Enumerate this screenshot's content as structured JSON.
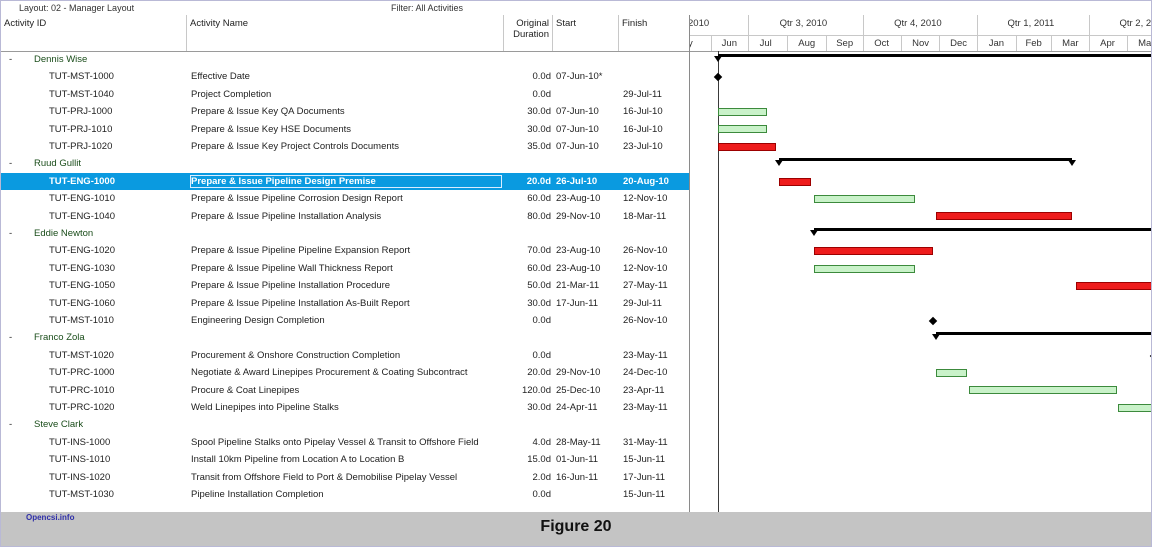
{
  "topbar": {
    "layout": "Layout: 02 - Manager Layout",
    "filter": "Filter: All Activities"
  },
  "columns": {
    "id": "Activity ID",
    "name": "Activity Name",
    "dur1": "Original",
    "dur2": "Duration",
    "start": "Start",
    "finish": "Finish"
  },
  "timescale": {
    "quarters": [
      "2010",
      "Qtr 3, 2010",
      "Qtr 4, 2010",
      "Qtr 1, 2011",
      "Qtr 2, 2"
    ],
    "months": [
      "y",
      "Jun",
      "Jul",
      "Aug",
      "Sep",
      "Oct",
      "Nov",
      "Dec",
      "Jan",
      "Feb",
      "Mar",
      "Apr",
      "May"
    ]
  },
  "rows": [
    {
      "type": "group",
      "name": "Dennis Wise",
      "collapse": "-"
    },
    {
      "id": "TUT-MST-1000",
      "name": "Effective Date",
      "dur": "0.0d",
      "start": "07-Jun-10*",
      "finish": ""
    },
    {
      "id": "TUT-MST-1040",
      "name": "Project Completion",
      "dur": "0.0d",
      "start": "",
      "finish": "29-Jul-11"
    },
    {
      "id": "TUT-PRJ-1000",
      "name": "Prepare & Issue Key QA Documents",
      "dur": "30.0d",
      "start": "07-Jun-10",
      "finish": "16-Jul-10"
    },
    {
      "id": "TUT-PRJ-1010",
      "name": "Prepare & Issue Key HSE Documents",
      "dur": "30.0d",
      "start": "07-Jun-10",
      "finish": "16-Jul-10"
    },
    {
      "id": "TUT-PRJ-1020",
      "name": "Prepare & Issue Key Project Controls Documents",
      "dur": "35.0d",
      "start": "07-Jun-10",
      "finish": "23-Jul-10"
    },
    {
      "type": "group",
      "name": "Ruud Gullit",
      "collapse": "-"
    },
    {
      "id": "TUT-ENG-1000",
      "name": "Prepare & Issue Pipeline Design Premise",
      "dur": "20.0d",
      "start": "26-Jul-10",
      "finish": "20-Aug-10",
      "selected": true
    },
    {
      "id": "TUT-ENG-1010",
      "name": "Prepare & Issue Pipeline Corrosion Design Report",
      "dur": "60.0d",
      "start": "23-Aug-10",
      "finish": "12-Nov-10"
    },
    {
      "id": "TUT-ENG-1040",
      "name": "Prepare & Issue Pipeline Installation Analysis",
      "dur": "80.0d",
      "start": "29-Nov-10",
      "finish": "18-Mar-11"
    },
    {
      "type": "group",
      "name": "Eddie Newton",
      "collapse": "-"
    },
    {
      "id": "TUT-ENG-1020",
      "name": "Prepare & Issue Pipeline Pipeline Expansion Report",
      "dur": "70.0d",
      "start": "23-Aug-10",
      "finish": "26-Nov-10"
    },
    {
      "id": "TUT-ENG-1030",
      "name": "Prepare & Issue Pipeline Wall Thickness Report",
      "dur": "60.0d",
      "start": "23-Aug-10",
      "finish": "12-Nov-10"
    },
    {
      "id": "TUT-ENG-1050",
      "name": "Prepare & Issue Pipeline Installation Procedure",
      "dur": "50.0d",
      "start": "21-Mar-11",
      "finish": "27-May-11"
    },
    {
      "id": "TUT-ENG-1060",
      "name": "Prepare & Issue Pipeline Installation As-Built Report",
      "dur": "30.0d",
      "start": "17-Jun-11",
      "finish": "29-Jul-11"
    },
    {
      "id": "TUT-MST-1010",
      "name": "Engineering Design Completion",
      "dur": "0.0d",
      "start": "",
      "finish": "26-Nov-10"
    },
    {
      "type": "group",
      "name": "Franco Zola",
      "collapse": "-"
    },
    {
      "id": "TUT-MST-1020",
      "name": "Procurement & Onshore Construction Completion",
      "dur": "0.0d",
      "start": "",
      "finish": "23-May-11"
    },
    {
      "id": "TUT-PRC-1000",
      "name": "Negotiate & Award Linepipes Procurement & Coating Subcontract",
      "dur": "20.0d",
      "start": "29-Nov-10",
      "finish": "24-Dec-10"
    },
    {
      "id": "TUT-PRC-1010",
      "name": "Procure & Coat Linepipes",
      "dur": "120.0d",
      "start": "25-Dec-10",
      "finish": "23-Apr-11"
    },
    {
      "id": "TUT-PRC-1020",
      "name": "Weld Linepipes into Pipeline Stalks",
      "dur": "30.0d",
      "start": "24-Apr-11",
      "finish": "23-May-11"
    },
    {
      "type": "group",
      "name": "Steve Clark",
      "collapse": "-"
    },
    {
      "id": "TUT-INS-1000",
      "name": "Spool Pipeline Stalks onto Pipelay Vessel & Transit to Offshore Field",
      "dur": "4.0d",
      "start": "28-May-11",
      "finish": "31-May-11"
    },
    {
      "id": "TUT-INS-1010",
      "name": "Install 10km Pipeline from Location A to Location B",
      "dur": "15.0d",
      "start": "01-Jun-11",
      "finish": "15-Jun-11"
    },
    {
      "id": "TUT-INS-1020",
      "name": "Transit from Offshore Field to Port & Demobilise Pipelay Vessel",
      "dur": "2.0d",
      "start": "16-Jun-11",
      "finish": "17-Jun-11"
    },
    {
      "id": "TUT-MST-1030",
      "name": "Pipeline Installation Completion",
      "dur": "0.0d",
      "start": "",
      "finish": "15-Jun-11"
    }
  ],
  "gantt": {
    "summary": [
      {
        "row": 0,
        "start": "2010-06-07",
        "end": "2011-07-29",
        "arrow_end": false
      },
      {
        "row": 6,
        "start": "2010-07-26",
        "end": "2011-03-18",
        "arrow_end": true
      },
      {
        "row": 10,
        "start": "2010-08-23",
        "end": "2011-07-29",
        "arrow_end": false
      },
      {
        "row": 16,
        "start": "2010-11-29",
        "end": "2011-07-29",
        "arrow_end": false
      }
    ],
    "milestones": [
      {
        "row": 1,
        "date": "2010-06-07"
      },
      {
        "row": 15,
        "date": "2010-11-26"
      },
      {
        "row": 17,
        "date": "2011-05-23"
      }
    ],
    "bars": [
      {
        "row": 3,
        "start": "2010-06-07",
        "end": "2010-07-16",
        "critical": false
      },
      {
        "row": 4,
        "start": "2010-06-07",
        "end": "2010-07-16",
        "critical": false
      },
      {
        "row": 5,
        "start": "2010-06-07",
        "end": "2010-07-23",
        "critical": true
      },
      {
        "row": 7,
        "start": "2010-07-26",
        "end": "2010-08-20",
        "critical": true
      },
      {
        "row": 8,
        "start": "2010-08-23",
        "end": "2010-11-12",
        "critical": false
      },
      {
        "row": 9,
        "start": "2010-11-29",
        "end": "2011-03-18",
        "critical": true
      },
      {
        "row": 11,
        "start": "2010-08-23",
        "end": "2010-11-26",
        "critical": true
      },
      {
        "row": 12,
        "start": "2010-08-23",
        "end": "2010-11-12",
        "critical": false
      },
      {
        "row": 13,
        "start": "2011-03-21",
        "end": "2011-05-27",
        "critical": true
      },
      {
        "row": 18,
        "start": "2010-11-29",
        "end": "2010-12-24",
        "critical": false
      },
      {
        "row": 19,
        "start": "2010-12-25",
        "end": "2011-04-23",
        "critical": false
      },
      {
        "row": 20,
        "start": "2011-04-24",
        "end": "2011-05-23",
        "critical": false
      }
    ],
    "data_date": "2010-06-07",
    "colors": {
      "critical": "#ee1c1c",
      "normal": "#c9f2c9",
      "summary": "#000000",
      "selected_row": "#0a9ae0"
    }
  },
  "footer": {
    "watermark": "Opencsi.info",
    "figure": "Figure 20"
  }
}
